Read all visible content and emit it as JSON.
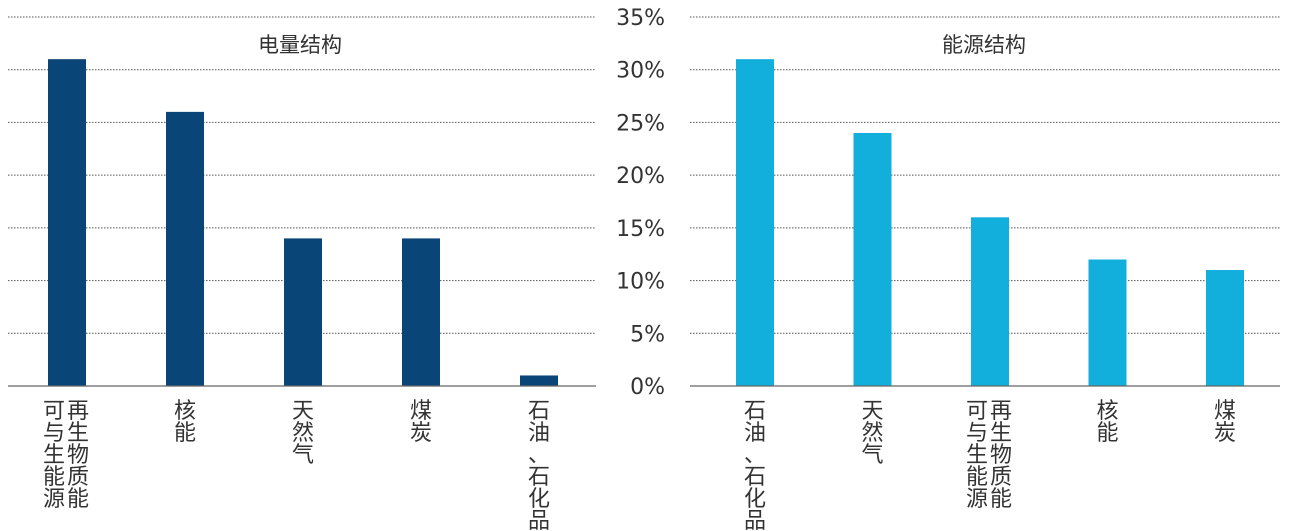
{
  "chart_data": [
    {
      "type": "bar",
      "title": "电量结构",
      "categories": [
        [
          "可再",
          "与生",
          "生物",
          "能质",
          "源能"
        ],
        [
          "核",
          "能"
        ],
        [
          "天",
          "然",
          "气"
        ],
        [
          "煤",
          "炭"
        ],
        [
          "石",
          "油",
          "、",
          "石",
          "化",
          "品"
        ]
      ],
      "values": [
        31,
        26,
        14,
        14,
        1
      ],
      "ylim": [
        0,
        35
      ],
      "grid": true,
      "colors": {
        "bar": "#0a4577"
      }
    },
    {
      "type": "bar",
      "title": "能源结构",
      "categories": [
        [
          "石",
          "油",
          "、",
          "石",
          "化",
          "品"
        ],
        [
          "天",
          "然",
          "气"
        ],
        [
          "可再",
          "与生",
          "生物",
          "能质",
          "源能"
        ],
        [
          "核",
          "能"
        ],
        [
          "煤",
          "炭"
        ]
      ],
      "values": [
        31,
        24,
        16,
        12,
        11
      ],
      "ylim": [
        0,
        35
      ],
      "yticks": [
        "0%",
        "5%",
        "10%",
        "15%",
        "20%",
        "25%",
        "30%",
        "35%"
      ],
      "grid": true,
      "colors": {
        "bar": "#12afdd"
      }
    }
  ]
}
